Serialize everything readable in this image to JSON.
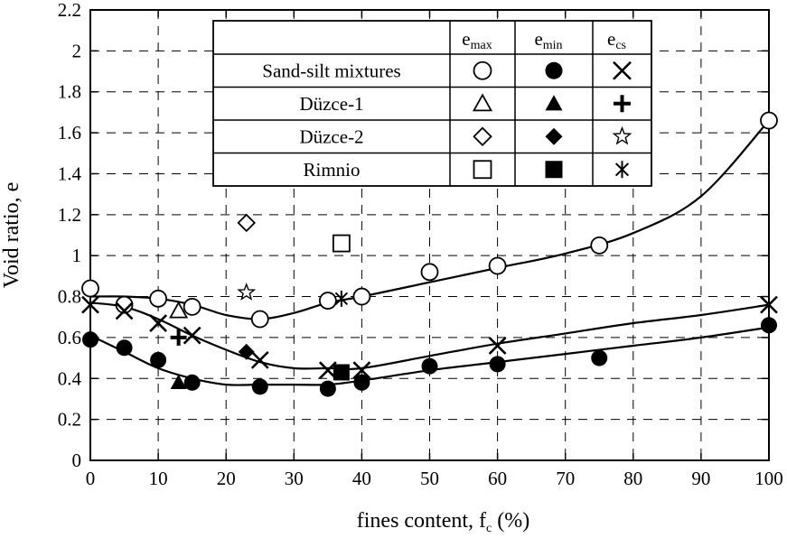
{
  "chart_data": {
    "type": "scatter",
    "xlabel": "fines content, f",
    "xlabel_sub": "c",
    "xlabel_suffix": " (%)",
    "ylabel": "Void ratio, e",
    "xlim": [
      0,
      100
    ],
    "ylim": [
      0,
      2.2
    ],
    "x_ticks": [
      "0",
      "10",
      "20",
      "30",
      "40",
      "50",
      "60",
      "70",
      "80",
      "90",
      "100"
    ],
    "y_ticks": [
      "0",
      "0.2",
      "0.4",
      "0.6",
      "0.8",
      "1",
      "1.2",
      "1.4",
      "1.6",
      "1.8",
      "2",
      "2.2"
    ],
    "grid": true,
    "legend": {
      "placement": "top-center",
      "columns": [
        {
          "main": "e",
          "sub": "max"
        },
        {
          "main": "e",
          "sub": "min"
        },
        {
          "main": "e",
          "sub": "cs"
        }
      ],
      "rows": [
        {
          "label": "Sand-silt mixtures",
          "markers": [
            "circle-open",
            "circle-filled",
            "x"
          ]
        },
        {
          "label": "Düzce-1",
          "markers": [
            "triangle-open",
            "triangle-filled",
            "plus"
          ]
        },
        {
          "label": "Düzce-2",
          "markers": [
            "diamond-open",
            "diamond-filled",
            "star-open"
          ]
        },
        {
          "label": "Rimnio",
          "markers": [
            "square-open",
            "square-filled",
            "asterisk"
          ]
        }
      ]
    },
    "series": [
      {
        "marker": "circle-open",
        "x": [
          0,
          5,
          10,
          15,
          25,
          35,
          40,
          50,
          60,
          75,
          100
        ],
        "y": [
          0.84,
          0.76,
          0.79,
          0.75,
          0.69,
          0.78,
          0.8,
          0.92,
          0.95,
          1.05,
          1.66
        ]
      },
      {
        "marker": "circle-filled",
        "x": [
          0,
          5,
          10,
          15,
          25,
          35,
          40,
          50,
          60,
          75,
          100
        ],
        "y": [
          0.59,
          0.55,
          0.49,
          0.38,
          0.36,
          0.35,
          0.38,
          0.46,
          0.47,
          0.5,
          0.66
        ]
      },
      {
        "marker": "x",
        "x": [
          0,
          5,
          10,
          15,
          25,
          35,
          40,
          60,
          100
        ],
        "y": [
          0.76,
          0.73,
          0.67,
          0.61,
          0.49,
          0.44,
          0.44,
          0.56,
          0.76
        ]
      },
      {
        "marker": "triangle-open",
        "x": [
          13
        ],
        "y": [
          0.73
        ]
      },
      {
        "marker": "triangle-filled",
        "x": [
          13
        ],
        "y": [
          0.38
        ]
      },
      {
        "marker": "plus",
        "x": [
          13
        ],
        "y": [
          0.6
        ]
      },
      {
        "marker": "diamond-open",
        "x": [
          23
        ],
        "y": [
          1.16
        ]
      },
      {
        "marker": "diamond-filled",
        "x": [
          23
        ],
        "y": [
          0.53
        ]
      },
      {
        "marker": "star-open",
        "x": [
          23
        ],
        "y": [
          0.82
        ]
      },
      {
        "marker": "square-open",
        "x": [
          37
        ],
        "y": [
          1.06
        ]
      },
      {
        "marker": "square-filled",
        "x": [
          37
        ],
        "y": [
          0.43
        ]
      },
      {
        "marker": "asterisk",
        "x": [
          37
        ],
        "y": [
          0.79
        ]
      }
    ],
    "trend_curves": [
      {
        "name": "emax-trend",
        "x": [
          0,
          5,
          10,
          15,
          20,
          25,
          30,
          35,
          40,
          50,
          60,
          70,
          80,
          90,
          100
        ],
        "y": [
          0.8,
          0.8,
          0.79,
          0.76,
          0.71,
          0.69,
          0.72,
          0.77,
          0.8,
          0.87,
          0.94,
          1.01,
          1.11,
          1.29,
          1.66
        ]
      },
      {
        "name": "emin-trend",
        "x": [
          0,
          5,
          10,
          15,
          20,
          25,
          30,
          35,
          40,
          50,
          60,
          70,
          80,
          90,
          100
        ],
        "y": [
          0.61,
          0.53,
          0.45,
          0.4,
          0.37,
          0.37,
          0.37,
          0.37,
          0.39,
          0.44,
          0.48,
          0.52,
          0.56,
          0.6,
          0.65
        ]
      },
      {
        "name": "ecs-trend",
        "x": [
          0,
          5,
          10,
          15,
          20,
          25,
          30,
          35,
          40,
          50,
          60,
          70,
          80,
          90,
          100
        ],
        "y": [
          0.77,
          0.75,
          0.69,
          0.61,
          0.54,
          0.48,
          0.45,
          0.45,
          0.45,
          0.51,
          0.57,
          0.62,
          0.67,
          0.71,
          0.76
        ]
      }
    ]
  }
}
